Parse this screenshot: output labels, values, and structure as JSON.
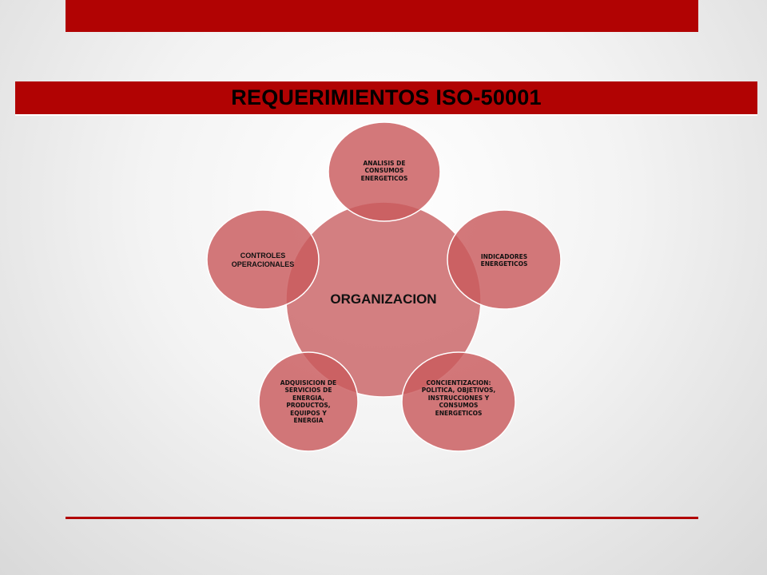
{
  "slide": {
    "title": "REQUERIMIENTOS ISO-50001",
    "accent_color": "#b10303",
    "circle_color": "#cd6d6f"
  },
  "diagram": {
    "center": "ORGANIZACION",
    "nodes": [
      "ANALISIS DE CONSUMOS ENERGETICOS",
      "INDICADORES ENERGETICOS",
      "CONCIENTIZACION: POLITICA, OBJETIVOS, INSTRUCCIONES Y CONSUMOS ENERGETICOS",
      "ADQUISICION DE SERVICIOS DE ENERGIA, PRODUCTOS, EQUIPOS Y ENERGIA",
      "CONTROLES OPERACIONALES"
    ]
  }
}
